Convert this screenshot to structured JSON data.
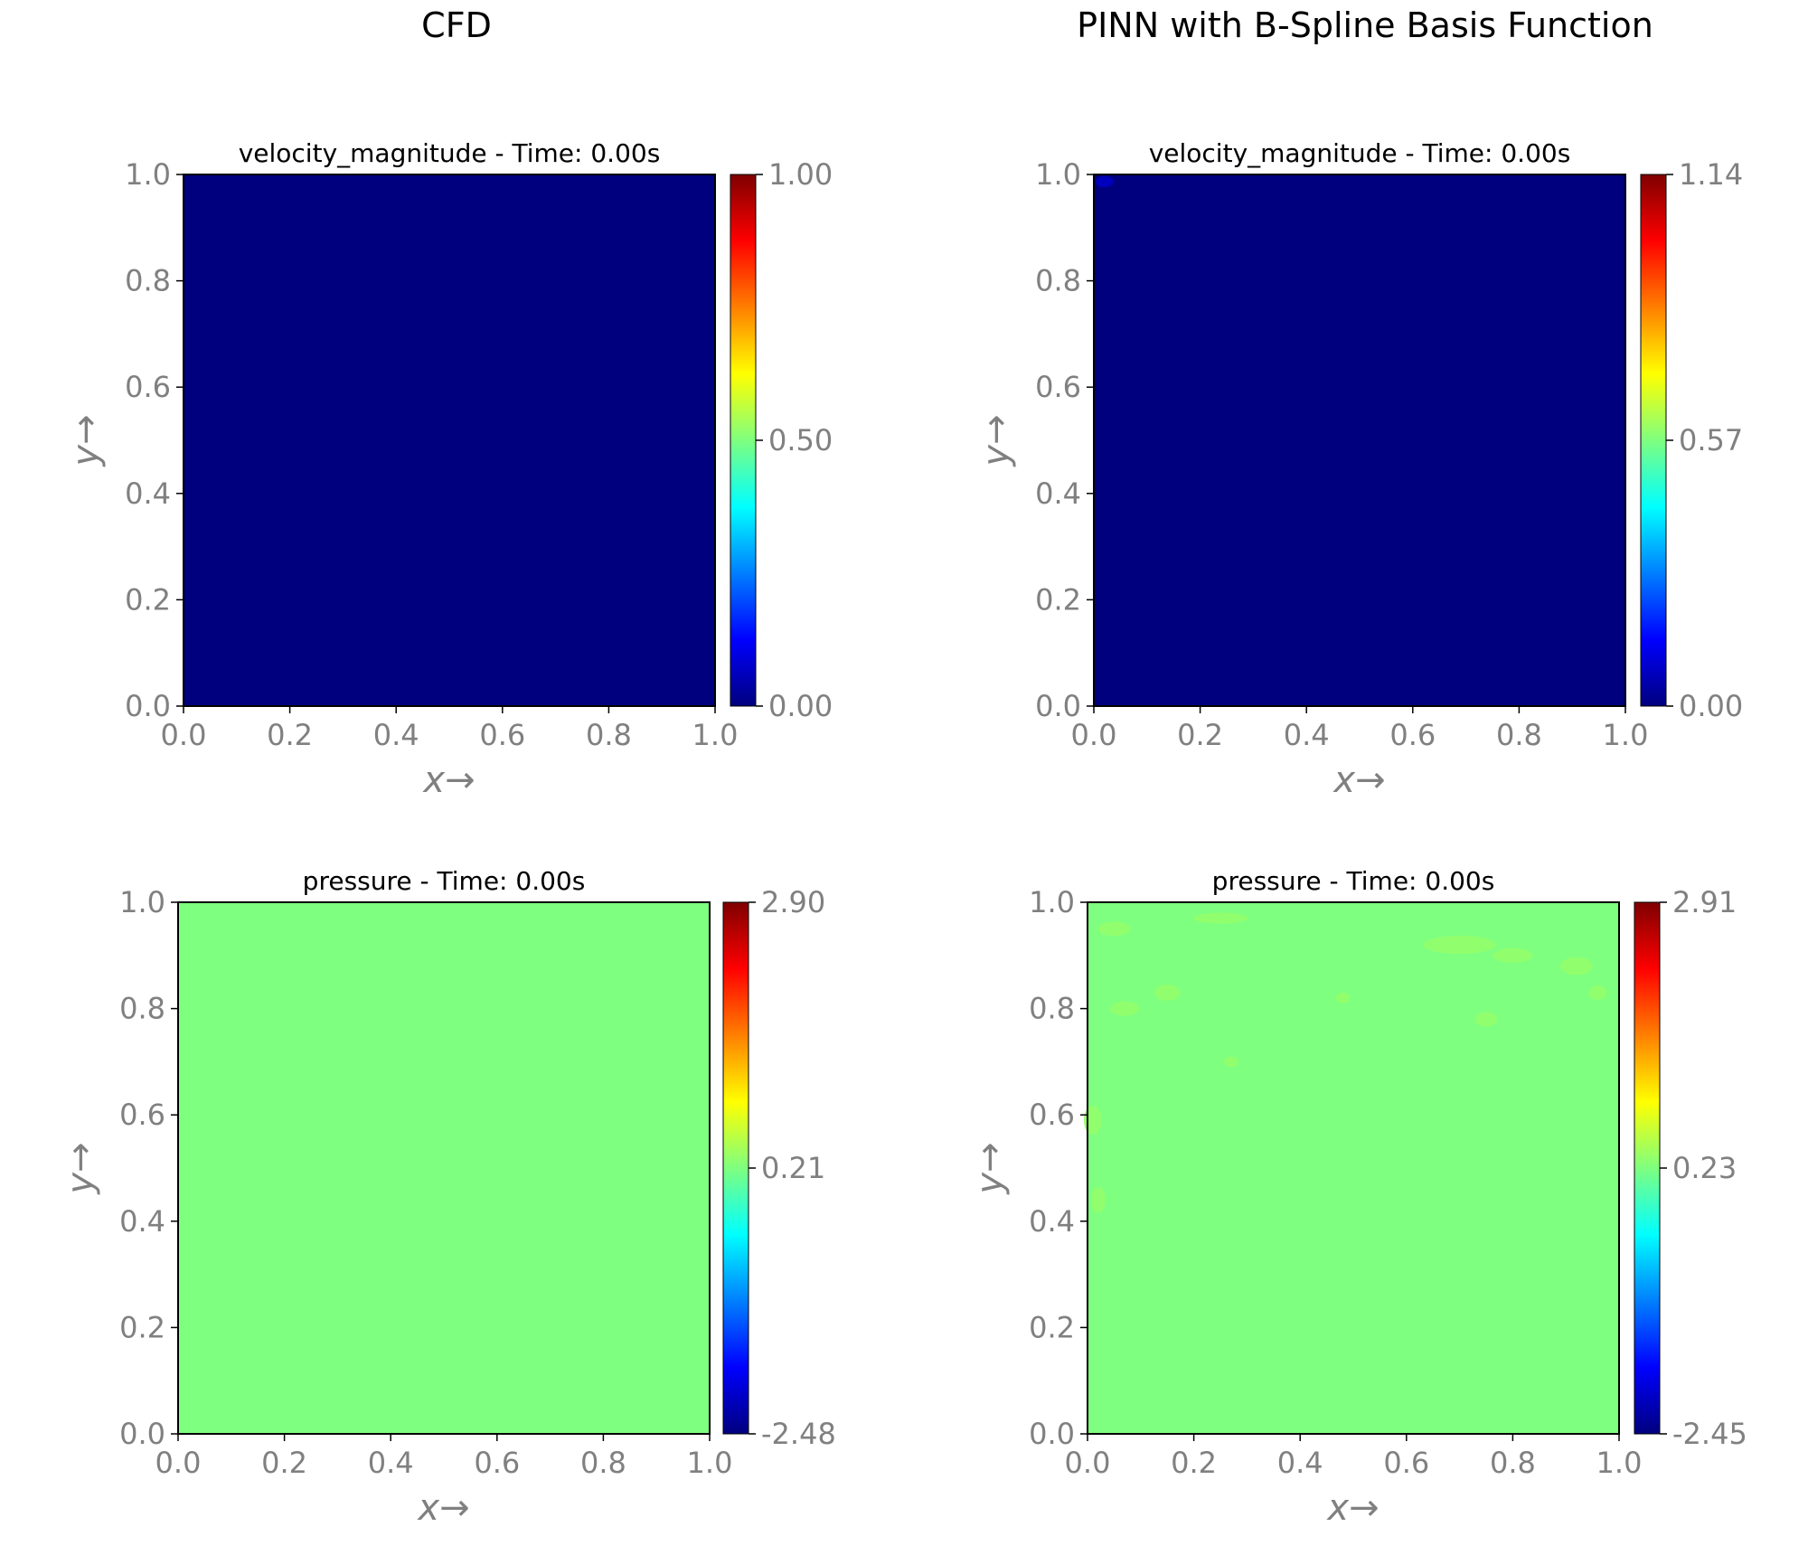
{
  "columns": [
    "CFD",
    "PINN with B-Spline Basis Function"
  ],
  "colors": {
    "jet": [
      "#00007f",
      "#0000ff",
      "#007fff",
      "#00ffff",
      "#7fff7f",
      "#ffff00",
      "#ff7f00",
      "#ff0000",
      "#7f0000"
    ],
    "axis_text": "#808080"
  },
  "chart_data": [
    {
      "type": "heatmap",
      "title": "velocity_magnitude - Time: 0.00s",
      "xlabel": "x→",
      "ylabel": "y→",
      "xlim": [
        0,
        1
      ],
      "ylim": [
        0,
        1
      ],
      "xticks": [
        "0.0",
        "0.2",
        "0.4",
        "0.6",
        "0.8",
        "1.0"
      ],
      "yticks": [
        "0.0",
        "0.2",
        "0.4",
        "0.6",
        "0.8",
        "1.0"
      ],
      "colorbar": {
        "min": 0.0,
        "max": 1.0,
        "ticks": [
          "0.00",
          "0.50",
          "1.00"
        ]
      },
      "field_value": 0.0
    },
    {
      "type": "heatmap",
      "title": "velocity_magnitude - Time: 0.00s",
      "xlabel": "x→",
      "ylabel": "y→",
      "xlim": [
        0,
        1
      ],
      "ylim": [
        0,
        1
      ],
      "xticks": [
        "0.0",
        "0.2",
        "0.4",
        "0.6",
        "0.8",
        "1.0"
      ],
      "yticks": [
        "0.0",
        "0.2",
        "0.4",
        "0.6",
        "0.8",
        "1.0"
      ],
      "colorbar": {
        "min": 0.0,
        "max": 1.14,
        "ticks": [
          "0.00",
          "0.57",
          "1.14"
        ]
      },
      "field_value": 0.0
    },
    {
      "type": "heatmap",
      "title": "pressure - Time: 0.00s",
      "xlabel": "x→",
      "ylabel": "y→",
      "xlim": [
        0,
        1
      ],
      "ylim": [
        0,
        1
      ],
      "xticks": [
        "0.0",
        "0.2",
        "0.4",
        "0.6",
        "0.8",
        "1.0"
      ],
      "yticks": [
        "0.0",
        "0.2",
        "0.4",
        "0.6",
        "0.8",
        "1.0"
      ],
      "colorbar": {
        "min": -2.48,
        "max": 2.9,
        "ticks": [
          "-2.48",
          "0.21",
          "2.90"
        ]
      },
      "field_value": 0.21
    },
    {
      "type": "heatmap",
      "title": "pressure - Time: 0.00s",
      "xlabel": "x→",
      "ylabel": "y→",
      "xlim": [
        0,
        1
      ],
      "ylim": [
        0,
        1
      ],
      "xticks": [
        "0.0",
        "0.2",
        "0.4",
        "0.6",
        "0.8",
        "1.0"
      ],
      "yticks": [
        "0.0",
        "0.2",
        "0.4",
        "0.6",
        "0.8",
        "1.0"
      ],
      "colorbar": {
        "min": -2.45,
        "max": 2.91,
        "ticks": [
          "-2.45",
          "0.23",
          "2.91"
        ]
      },
      "field_value": 0.23
    }
  ]
}
